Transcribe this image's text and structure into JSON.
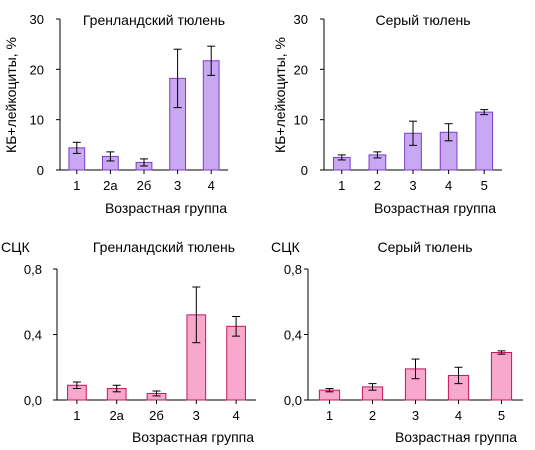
{
  "chart_data": [
    {
      "type": "bar",
      "title": "Гренландский тюлень",
      "xlabel": "Возрастная группа",
      "ylabel": "КБ+лейкоциты, %",
      "ylim": [
        0,
        30
      ],
      "yticks": [
        "0",
        "10",
        "20",
        "30"
      ],
      "categories": [
        "1",
        "2а",
        "2б",
        "3",
        "4"
      ],
      "values": [
        4.4,
        2.7,
        1.5,
        18.2,
        21.7
      ],
      "errors": [
        1.1,
        0.9,
        0.7,
        5.8,
        2.9
      ],
      "bar_color": "#c9a8f3",
      "bar_edge": "#7a3fbf",
      "y_label_style": "rotated"
    },
    {
      "type": "bar",
      "title": "Серый тюлень",
      "xlabel": "Возрастная группа",
      "ylabel": "КБ+лейкоциты, %",
      "ylim": [
        0,
        30
      ],
      "yticks": [
        "0",
        "10",
        "20",
        "30"
      ],
      "categories": [
        "1",
        "2",
        "3",
        "4",
        "5"
      ],
      "values": [
        2.5,
        3.0,
        7.3,
        7.5,
        11.5
      ],
      "errors": [
        0.5,
        0.6,
        2.4,
        1.7,
        0.5
      ],
      "bar_color": "#c9a8f3",
      "bar_edge": "#7a3fbf",
      "y_label_style": "rotated"
    },
    {
      "type": "bar",
      "title": "Гренландский тюлень",
      "xlabel": "Возрастная группа",
      "ylabel": "СЦК",
      "ylim": [
        0,
        0.8
      ],
      "yticks": [
        "0,0",
        "0,4",
        "0,8"
      ],
      "categories": [
        "1",
        "2а",
        "2б",
        "3",
        "4"
      ],
      "values": [
        0.09,
        0.07,
        0.04,
        0.52,
        0.45
      ],
      "errors": [
        0.02,
        0.02,
        0.015,
        0.17,
        0.06
      ],
      "bar_color": "#f7a8cc",
      "bar_edge": "#c2185b",
      "y_label_style": "horizontal"
    },
    {
      "type": "bar",
      "title": "Серый тюлень",
      "xlabel": "Возрастная группа",
      "ylabel": "СЦК",
      "ylim": [
        0,
        0.8
      ],
      "yticks": [
        "0,0",
        "0,4",
        "0,8"
      ],
      "categories": [
        "1",
        "2",
        "3",
        "4",
        "5"
      ],
      "values": [
        0.06,
        0.08,
        0.19,
        0.15,
        0.29
      ],
      "errors": [
        0.01,
        0.02,
        0.06,
        0.05,
        0.01
      ],
      "bar_color": "#f7a8cc",
      "bar_edge": "#c2185b",
      "y_label_style": "horizontal"
    }
  ]
}
